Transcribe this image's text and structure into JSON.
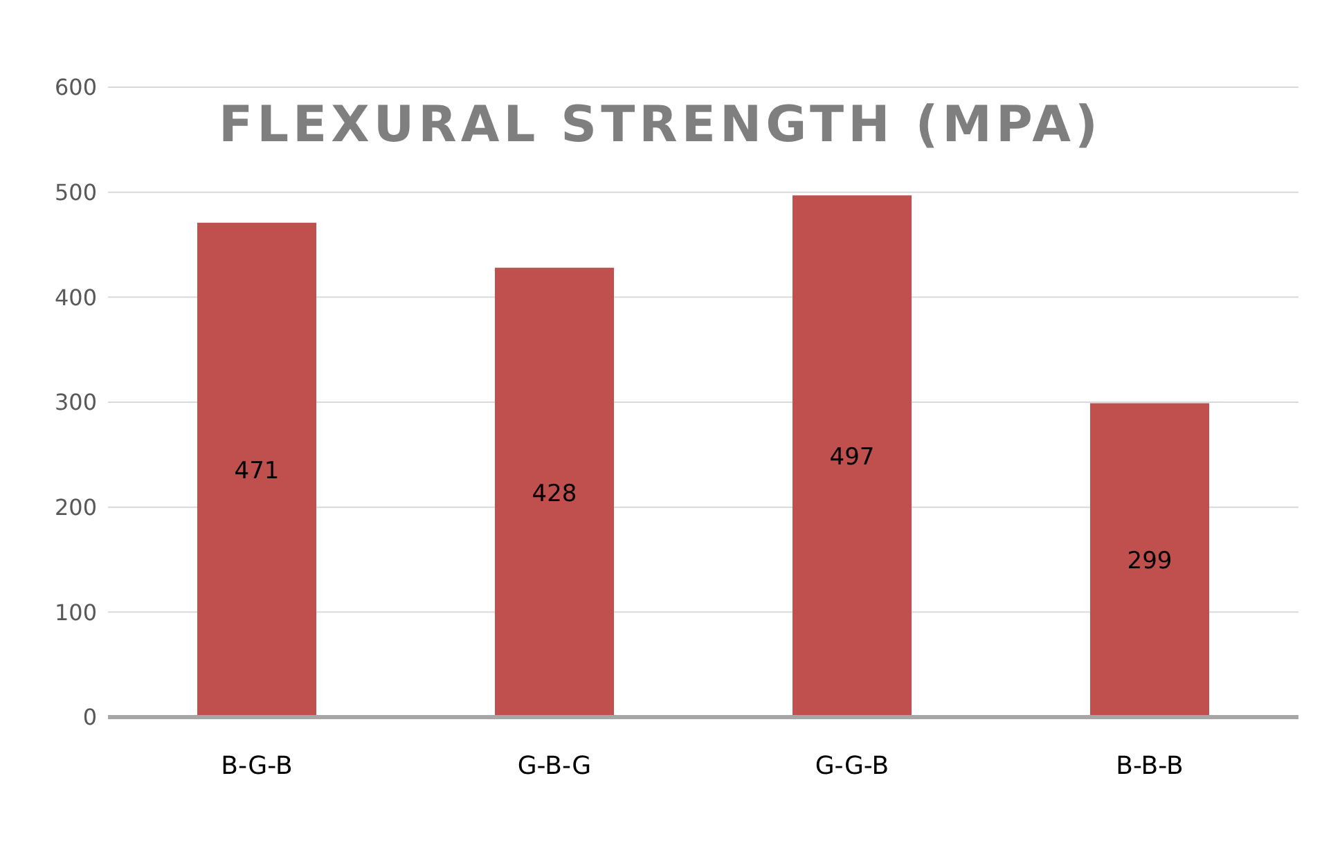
{
  "chart_data": {
    "type": "bar",
    "title": "FLEXURAL STRENGTH (MPA)",
    "categories": [
      "B-G-B",
      "G-B-G",
      "G-G-B",
      "B-B-B"
    ],
    "values": [
      471,
      428,
      497,
      299
    ],
    "color": "#c0504d",
    "ylim": [
      0,
      600
    ],
    "yticks": [
      0,
      100,
      200,
      300,
      400,
      500,
      600
    ],
    "grid": "y",
    "data_labels": true
  }
}
